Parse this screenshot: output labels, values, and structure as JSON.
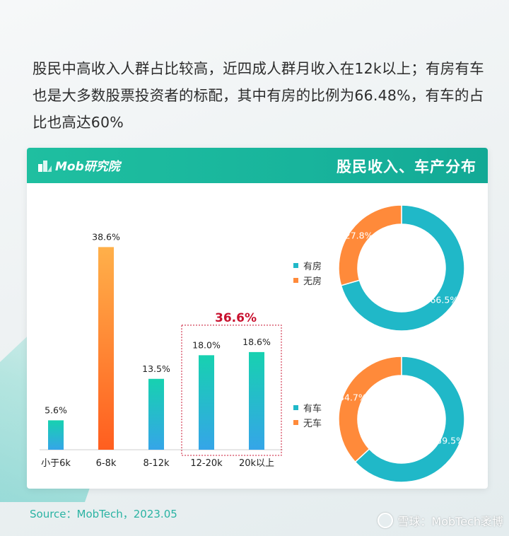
{
  "headline": "股民中高收入人群占比较高，近四成人群月收入在12k以上；有房有车也是大多数股票投资者的标配，其中有房的比例为66.48%，有车的占比也高达60%",
  "card": {
    "logo_text": "Mob研究院",
    "title": "股民收入、车产分布"
  },
  "chart_data": [
    {
      "type": "bar",
      "categories": [
        "小于6k",
        "6-8k",
        "8-12k",
        "12-20k",
        "20k以上"
      ],
      "values": [
        5.6,
        38.6,
        13.5,
        18.0,
        18.6
      ],
      "value_labels": [
        "5.6%",
        "38.6%",
        "13.5%",
        "18.0%",
        "18.6%"
      ],
      "highlight": {
        "categories": [
          "12-20k",
          "20k以上"
        ],
        "label": "36.6%",
        "color": "#c8102e"
      },
      "colors": {
        "default_top": "#17d1b0",
        "default_bottom": "#35a5e8",
        "peak_top": "#ffb04a",
        "peak_bottom": "#ff5e1f"
      },
      "ylim": [
        0,
        40
      ]
    },
    {
      "type": "pie",
      "labels": [
        "有房",
        "无房"
      ],
      "values": [
        66.5,
        27.8
      ],
      "value_labels": [
        "66.5%",
        "27.8%"
      ],
      "colors": [
        "#20b8c8",
        "#ff8a3a"
      ]
    },
    {
      "type": "pie",
      "labels": [
        "有车",
        "无车"
      ],
      "values": [
        59.5,
        34.7
      ],
      "value_labels": [
        "59.5%",
        "34.7%"
      ],
      "colors": [
        "#20b8c8",
        "#ff8a3a"
      ]
    }
  ],
  "source": "Source：MobTech，2023.05",
  "watermark": "雪球：MobTech袤博"
}
